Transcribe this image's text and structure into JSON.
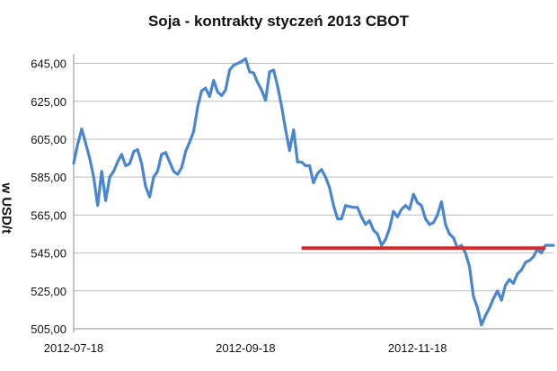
{
  "chart_data": {
    "type": "line",
    "title": "Soja - kontrakty styczeń 2013 CBOT",
    "xlabel": "",
    "ylabel": "w USD/t",
    "ylim": [
      505,
      650
    ],
    "yticks": [
      "645,00",
      "625,00",
      "605,00",
      "585,00",
      "565,00",
      "545,00",
      "525,00",
      "505,00"
    ],
    "ytick_values": [
      645,
      625,
      605,
      585,
      565,
      545,
      525,
      505
    ],
    "xtick_labels": [
      "2012-07-18",
      "2012-09-18",
      "2012-11-18"
    ],
    "xtick_index": [
      0,
      43,
      86
    ],
    "grid": true,
    "legend": "none",
    "series": [
      {
        "color": "#4a86d0",
        "values": [
          592.4,
          602.4,
          610.4,
          603.0,
          595.0,
          585.0,
          570.0,
          588.0,
          572.6,
          585.0,
          588.0,
          593.0,
          597.0,
          591.0,
          592.0,
          598.5,
          599.5,
          592.0,
          580.0,
          574.5,
          585.0,
          588.0,
          597.0,
          598.0,
          593.0,
          588.0,
          586.5,
          590.0,
          598.5,
          603.5,
          609.0,
          622.0,
          630.5,
          632.0,
          627.5,
          636.0,
          630.0,
          628.0,
          631.0,
          641.5,
          644.0,
          645.0,
          646.0,
          647.5,
          640.5,
          640.0,
          635.0,
          631.0,
          625.5,
          640.5,
          641.5,
          633.0,
          622.5,
          610.0,
          599.0,
          610.0,
          593.0,
          593.0,
          591.0,
          591.0,
          582.0,
          587.0,
          589.0,
          585.0,
          579.5,
          570.0,
          563.0,
          563.0,
          570.0,
          569.5,
          569.0,
          569.0,
          564.0,
          560.0,
          562.0,
          557.0,
          555.0,
          549.0,
          552.0,
          558.0,
          567.0,
          564.0,
          568.0,
          570.0,
          568.0,
          576.0,
          571.5,
          570.0,
          563.0,
          560.0,
          561.0,
          565.0,
          572.0,
          560.0,
          555.0,
          553.0,
          547.5,
          549.0,
          545.0,
          538.0,
          522.0,
          516.0,
          507.0,
          512.0,
          516.0,
          521.0,
          525.0,
          520.0,
          528.0,
          531.0,
          529.0,
          534.0,
          536.0,
          540.0,
          541.0,
          543.0,
          547.0,
          545.0,
          549.0,
          549.0,
          549.0
        ],
        "x_index_scale": 1
      },
      {
        "color": "#d62b2b",
        "kind": "reference-line",
        "y": 547.5,
        "x_start_index": 57,
        "x_end_index": 118
      }
    ]
  }
}
